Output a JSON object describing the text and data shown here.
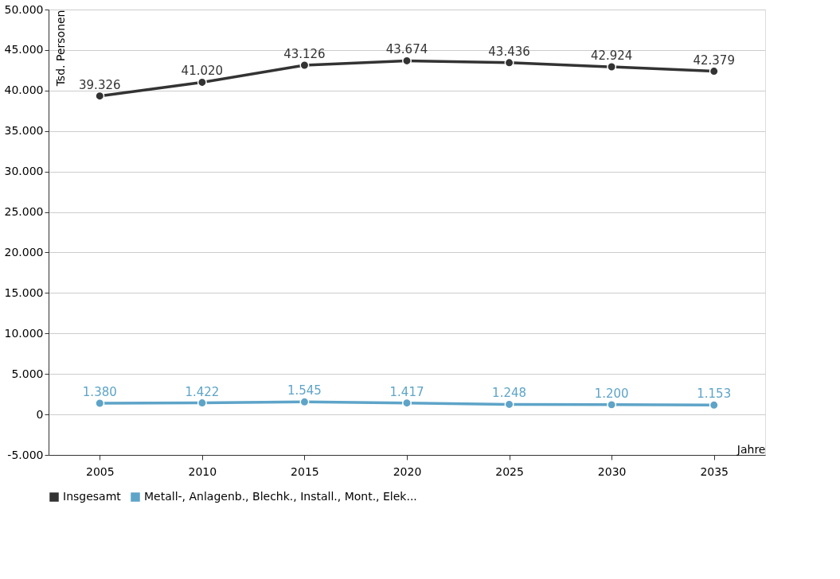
{
  "chart_data": {
    "type": "line",
    "xlabel": "Jahre",
    "ylabel": "Tsd. Personen",
    "categories": [
      "2005",
      "2010",
      "2015",
      "2020",
      "2025",
      "2030",
      "2035"
    ],
    "series": [
      {
        "name": "Insgesamt",
        "color": "#333333",
        "values": [
          39326,
          41020,
          43126,
          43674,
          43436,
          42924,
          42379
        ],
        "value_labels": [
          "39.326",
          "41.020",
          "43.126",
          "43.674",
          "43.436",
          "42.924",
          "42.379"
        ]
      },
      {
        "name": "Metall-, Anlagenb., Blechk., Install., Mont., Elek...",
        "color": "#5ea4c8",
        "values": [
          1380,
          1422,
          1545,
          1417,
          1248,
          1200,
          1153
        ],
        "value_labels": [
          "1.380",
          "1.422",
          "1.545",
          "1.417",
          "1.248",
          "1.200",
          "1.153"
        ]
      }
    ],
    "ylim": [
      -5000,
      50000
    ],
    "yticks": [
      {
        "value": -5000,
        "label": "-5.000"
      },
      0,
      {
        "value": 5000,
        "label": "5.000"
      },
      {
        "value": 10000,
        "label": "10.000"
      },
      {
        "value": 15000,
        "label": "15.000"
      },
      {
        "value": 20000,
        "label": "20.000"
      },
      {
        "value": 25000,
        "label": "25.000"
      },
      {
        "value": 30000,
        "label": "30.000"
      },
      {
        "value": 35000,
        "label": "35.000"
      },
      {
        "value": 40000,
        "label": "40.000"
      },
      {
        "value": 45000,
        "label": "45.000"
      },
      {
        "value": 50000,
        "label": "50.000"
      }
    ],
    "grid": "y",
    "legend": "bottom",
    "marker": "circle",
    "line_style": "solid"
  }
}
